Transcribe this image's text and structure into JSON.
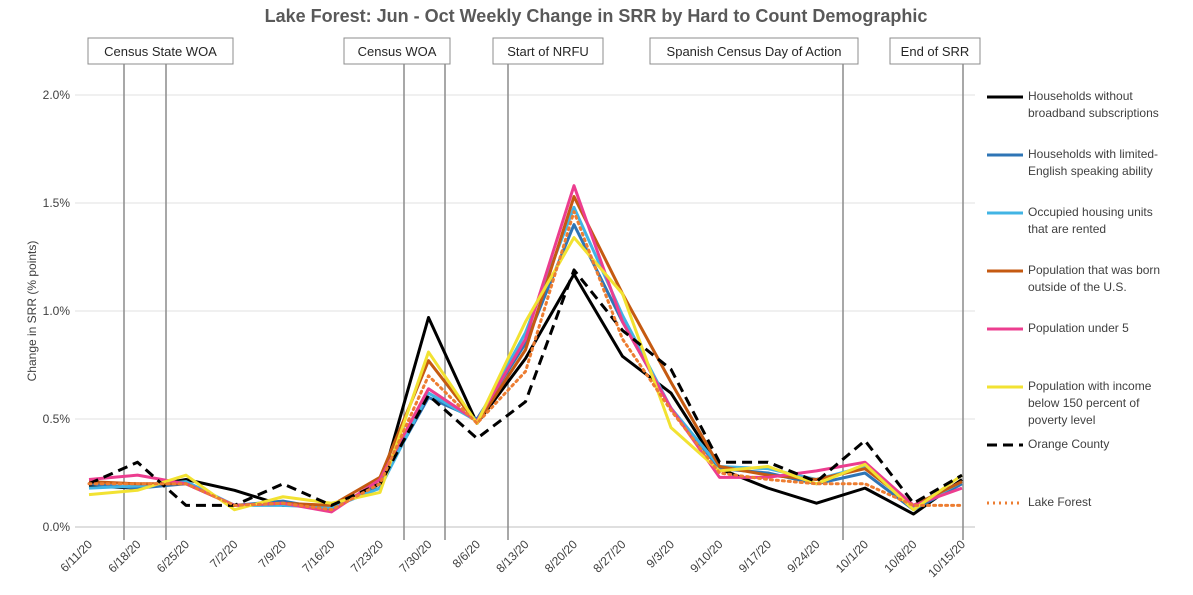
{
  "chart_data": {
    "type": "line",
    "title": "Lake Forest: Jun - Oct Weekly Change in SRR by Hard to Count Demographic",
    "y_label": "Change in SRR (% points)",
    "categories": [
      "6/11/20",
      "6/18/20",
      "6/25/20",
      "7/2/20",
      "7/9/20",
      "7/16/20",
      "7/23/20",
      "7/30/20",
      "8/6/20",
      "8/13/20",
      "8/20/20",
      "8/27/20",
      "9/3/20",
      "9/10/20",
      "9/17/20",
      "9/24/20",
      "10/1/20",
      "10/8/20",
      "10/15/20"
    ],
    "ylim": [
      0,
      2
    ],
    "yticks": [
      {
        "value": 0,
        "label": "0.0%"
      },
      {
        "value": 0.5,
        "label": "0.5%"
      },
      {
        "value": 1,
        "label": "1.0%"
      },
      {
        "value": 1.5,
        "label": "1.5%"
      },
      {
        "value": 2,
        "label": "2.0%"
      }
    ],
    "grid": true,
    "legend": "right",
    "annotations": [
      "Census State WOA",
      "Census WOA",
      "Start of NRFU",
      "Spanish Census Day of Action",
      "End of SRR"
    ],
    "series": [
      {
        "name": "Households without broadband subscriptions",
        "color": "#000000",
        "style": "solid",
        "values": [
          0.19,
          0.18,
          0.22,
          0.17,
          0.1,
          0.1,
          0.18,
          0.97,
          0.48,
          0.78,
          1.17,
          0.79,
          0.62,
          0.27,
          0.18,
          0.11,
          0.18,
          0.06,
          0.22
        ]
      },
      {
        "name": "Households with limited-English speaking ability",
        "color": "#2e75b6",
        "style": "solid",
        "values": [
          0.2,
          0.18,
          0.2,
          0.1,
          0.12,
          0.08,
          0.2,
          0.6,
          0.5,
          0.85,
          1.4,
          0.95,
          0.55,
          0.27,
          0.25,
          0.2,
          0.25,
          0.08,
          0.2
        ]
      },
      {
        "name": "Occupied housing units that are rented",
        "color": "#41b4e4",
        "style": "solid",
        "values": [
          0.18,
          0.19,
          0.21,
          0.1,
          0.1,
          0.09,
          0.18,
          0.62,
          0.49,
          0.9,
          1.48,
          0.98,
          0.55,
          0.28,
          0.27,
          0.22,
          0.28,
          0.09,
          0.21
        ]
      },
      {
        "name": "Population that was born outside of the U.S.",
        "color": "#c55a11",
        "style": "solid",
        "values": [
          0.21,
          0.2,
          0.2,
          0.1,
          0.11,
          0.1,
          0.23,
          0.77,
          0.48,
          0.82,
          1.53,
          1.08,
          0.67,
          0.28,
          0.24,
          0.22,
          0.27,
          0.1,
          0.21
        ]
      },
      {
        "name": "Population under 5",
        "color": "#ec3d8f",
        "style": "solid",
        "values": [
          0.22,
          0.24,
          0.2,
          0.1,
          0.11,
          0.07,
          0.22,
          0.64,
          0.49,
          0.87,
          1.58,
          0.95,
          0.55,
          0.23,
          0.23,
          0.26,
          0.3,
          0.1,
          0.18
        ]
      },
      {
        "name": "Population with income below 150 percent of poverty level",
        "color": "#f2e232",
        "style": "solid",
        "values": [
          0.15,
          0.17,
          0.24,
          0.08,
          0.14,
          0.11,
          0.16,
          0.81,
          0.48,
          0.95,
          1.34,
          1.08,
          0.46,
          0.26,
          0.28,
          0.2,
          0.29,
          0.08,
          0.24
        ]
      },
      {
        "name": "Orange County",
        "color": "#000000",
        "style": "dashed",
        "values": [
          0.2,
          0.3,
          0.1,
          0.1,
          0.2,
          0.1,
          0.2,
          0.61,
          0.41,
          0.58,
          1.19,
          0.91,
          0.73,
          0.3,
          0.3,
          0.21,
          0.4,
          0.11,
          0.24
        ]
      },
      {
        "name": "Lake Forest",
        "color": "#ed7d31",
        "style": "dotted",
        "values": [
          0.2,
          0.2,
          0.2,
          0.1,
          0.11,
          0.08,
          0.2,
          0.7,
          0.48,
          0.72,
          1.46,
          0.87,
          0.54,
          0.25,
          0.22,
          0.2,
          0.2,
          0.1,
          0.1
        ]
      }
    ]
  }
}
